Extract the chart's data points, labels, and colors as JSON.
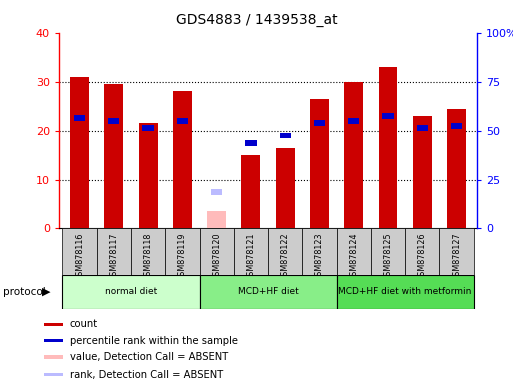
{
  "title": "GDS4883 / 1439538_at",
  "samples": [
    "GSM878116",
    "GSM878117",
    "GSM878118",
    "GSM878119",
    "GSM878120",
    "GSM878121",
    "GSM878122",
    "GSM878123",
    "GSM878124",
    "GSM878125",
    "GSM878126",
    "GSM878127"
  ],
  "count_values": [
    31,
    29.5,
    21.5,
    28,
    null,
    15,
    16.5,
    26.5,
    30,
    33,
    23,
    24.5
  ],
  "count_absent": [
    null,
    null,
    null,
    null,
    3.5,
    null,
    null,
    null,
    null,
    null,
    null,
    null
  ],
  "percentile_values": [
    22.5,
    22,
    20.5,
    22,
    null,
    17.5,
    19,
    21.5,
    22,
    23,
    20.5,
    21
  ],
  "percentile_absent": [
    null,
    null,
    null,
    null,
    7.5,
    null,
    null,
    null,
    null,
    null,
    null,
    null
  ],
  "ylim_left": [
    0,
    40
  ],
  "ylim_right": [
    0,
    100
  ],
  "yticks_left": [
    0,
    10,
    20,
    30,
    40
  ],
  "ytick_labels_left": [
    "0",
    "10",
    "20",
    "30",
    "40"
  ],
  "yticks_right": [
    0,
    25,
    50,
    75,
    100
  ],
  "ytick_labels_right": [
    "0",
    "25",
    "50",
    "75",
    "100%"
  ],
  "groups": [
    {
      "label": "normal diet",
      "start": 0,
      "end": 4,
      "color": "#ccffcc"
    },
    {
      "label": "MCD+HF diet",
      "start": 4,
      "end": 8,
      "color": "#88ee88"
    },
    {
      "label": "MCD+HF diet with metformin",
      "start": 8,
      "end": 12,
      "color": "#55dd55"
    }
  ],
  "count_color": "#cc0000",
  "percentile_color": "#0000cc",
  "count_absent_color": "#ffbbbb",
  "percentile_absent_color": "#bbbbff",
  "bar_width": 0.55,
  "tick_bg_color": "#cccccc",
  "legend_items": [
    {
      "label": "count",
      "color": "#cc0000"
    },
    {
      "label": "percentile rank within the sample",
      "color": "#0000cc"
    },
    {
      "label": "value, Detection Call = ABSENT",
      "color": "#ffbbbb"
    },
    {
      "label": "rank, Detection Call = ABSENT",
      "color": "#bbbbff"
    }
  ]
}
